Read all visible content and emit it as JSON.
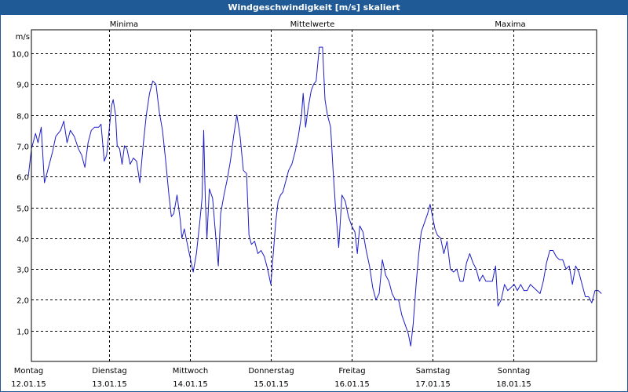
{
  "window": {
    "title": "Windgeschwindigkeit [m/s] skaliert"
  },
  "legend": {
    "min_label": "Minima",
    "min_color": "#1fa51f",
    "mean_label": "Mittelwerte",
    "mean_color": "#1c1cc8",
    "max_label": "Maxima",
    "max_color": "#c81c1c"
  },
  "chart_data": {
    "type": "line",
    "title": "Windgeschwindigkeit [m/s] skaliert",
    "ylabel": "m/s",
    "ylim": [
      0,
      11
    ],
    "yticks": [
      "1,0",
      "2,0",
      "3,0",
      "4,0",
      "5,0",
      "6,0",
      "7,0",
      "8,0",
      "9,0",
      "10,0"
    ],
    "days": [
      {
        "weekday": "Montag",
        "date": "12.01.15"
      },
      {
        "weekday": "Dienstag",
        "date": "13.01.15"
      },
      {
        "weekday": "Mittwoch",
        "date": "14.01.15"
      },
      {
        "weekday": "Donnerstag",
        "date": "15.01.15"
      },
      {
        "weekday": "Freitag",
        "date": "16.01.15"
      },
      {
        "weekday": "Samstag",
        "date": "17.01.15"
      },
      {
        "weekday": "Sonntag",
        "date": "18.01.15"
      }
    ],
    "grid": true,
    "series": [
      {
        "name": "Mittelwerte",
        "color": "#1c1cc8",
        "x_unit": "days since 12.01.15 00:00",
        "points": [
          [
            0.0,
            6.0
          ],
          [
            0.04,
            6.9
          ],
          [
            0.09,
            7.4
          ],
          [
            0.12,
            7.1
          ],
          [
            0.16,
            7.6
          ],
          [
            0.2,
            5.8
          ],
          [
            0.25,
            6.3
          ],
          [
            0.3,
            6.8
          ],
          [
            0.34,
            7.3
          ],
          [
            0.4,
            7.5
          ],
          [
            0.44,
            7.8
          ],
          [
            0.48,
            7.1
          ],
          [
            0.52,
            7.5
          ],
          [
            0.57,
            7.3
          ],
          [
            0.62,
            6.9
          ],
          [
            0.66,
            6.7
          ],
          [
            0.7,
            6.3
          ],
          [
            0.74,
            7.1
          ],
          [
            0.78,
            7.5
          ],
          [
            0.82,
            7.6
          ],
          [
            0.87,
            7.6
          ],
          [
            0.9,
            7.7
          ],
          [
            0.94,
            6.5
          ],
          [
            0.97,
            6.7
          ],
          [
            1.0,
            7.5
          ],
          [
            1.03,
            8.3
          ],
          [
            1.05,
            8.5
          ],
          [
            1.08,
            8.0
          ],
          [
            1.1,
            7.0
          ],
          [
            1.13,
            6.9
          ],
          [
            1.16,
            6.4
          ],
          [
            1.19,
            7.0
          ],
          [
            1.22,
            6.9
          ],
          [
            1.26,
            6.4
          ],
          [
            1.3,
            6.6
          ],
          [
            1.34,
            6.5
          ],
          [
            1.38,
            5.8
          ],
          [
            1.42,
            7.0
          ],
          [
            1.46,
            8.0
          ],
          [
            1.5,
            8.7
          ],
          [
            1.54,
            9.1
          ],
          [
            1.58,
            9.0
          ],
          [
            1.62,
            8.1
          ],
          [
            1.66,
            7.5
          ],
          [
            1.7,
            6.5
          ],
          [
            1.74,
            5.4
          ],
          [
            1.77,
            4.7
          ],
          [
            1.8,
            4.8
          ],
          [
            1.84,
            5.4
          ],
          [
            1.88,
            4.6
          ],
          [
            1.9,
            4.0
          ],
          [
            1.93,
            4.3
          ],
          [
            1.96,
            3.9
          ],
          [
            2.0,
            3.4
          ],
          [
            2.04,
            2.9
          ],
          [
            2.08,
            3.5
          ],
          [
            2.12,
            4.5
          ],
          [
            2.15,
            5.3
          ],
          [
            2.17,
            7.5
          ],
          [
            2.19,
            5.2
          ],
          [
            2.21,
            4.0
          ],
          [
            2.24,
            5.6
          ],
          [
            2.28,
            5.3
          ],
          [
            2.32,
            4.0
          ],
          [
            2.35,
            3.1
          ],
          [
            2.38,
            4.8
          ],
          [
            2.42,
            5.4
          ],
          [
            2.46,
            5.9
          ],
          [
            2.5,
            6.5
          ],
          [
            2.54,
            7.3
          ],
          [
            2.58,
            8.0
          ],
          [
            2.62,
            7.3
          ],
          [
            2.66,
            6.2
          ],
          [
            2.7,
            6.1
          ],
          [
            2.73,
            4.1
          ],
          [
            2.76,
            3.8
          ],
          [
            2.8,
            3.9
          ],
          [
            2.84,
            3.5
          ],
          [
            2.88,
            3.6
          ],
          [
            2.92,
            3.4
          ],
          [
            2.96,
            3.0
          ],
          [
            3.0,
            2.5
          ],
          [
            3.03,
            3.5
          ],
          [
            3.06,
            4.5
          ],
          [
            3.09,
            5.2
          ],
          [
            3.12,
            5.4
          ],
          [
            3.15,
            5.5
          ],
          [
            3.18,
            5.8
          ],
          [
            3.22,
            6.2
          ],
          [
            3.26,
            6.4
          ],
          [
            3.3,
            6.8
          ],
          [
            3.34,
            7.3
          ],
          [
            3.38,
            8.0
          ],
          [
            3.4,
            8.7
          ],
          [
            3.43,
            7.6
          ],
          [
            3.46,
            8.2
          ],
          [
            3.5,
            8.8
          ],
          [
            3.53,
            9.0
          ],
          [
            3.56,
            9.1
          ],
          [
            3.6,
            10.2
          ],
          [
            3.64,
            10.2
          ],
          [
            3.67,
            8.5
          ],
          [
            3.7,
            8.0
          ],
          [
            3.74,
            7.6
          ],
          [
            3.77,
            6.2
          ],
          [
            3.8,
            5.0
          ],
          [
            3.84,
            3.7
          ],
          [
            3.88,
            5.4
          ],
          [
            3.92,
            5.2
          ],
          [
            3.96,
            4.7
          ],
          [
            4.0,
            4.4
          ],
          [
            4.04,
            4.2
          ],
          [
            4.07,
            3.5
          ],
          [
            4.1,
            4.4
          ],
          [
            4.14,
            4.2
          ],
          [
            4.18,
            3.6
          ],
          [
            4.22,
            3.1
          ],
          [
            4.26,
            2.4
          ],
          [
            4.3,
            2.0
          ],
          [
            4.34,
            2.2
          ],
          [
            4.38,
            3.3
          ],
          [
            4.42,
            2.8
          ],
          [
            4.46,
            2.6
          ],
          [
            4.5,
            2.2
          ],
          [
            4.54,
            2.0
          ],
          [
            4.58,
            2.0
          ],
          [
            4.62,
            1.5
          ],
          [
            4.66,
            1.2
          ],
          [
            4.7,
            0.9
          ],
          [
            4.73,
            0.5
          ],
          [
            4.76,
            1.2
          ],
          [
            4.8,
            2.6
          ],
          [
            4.83,
            3.5
          ],
          [
            4.86,
            4.2
          ],
          [
            4.9,
            4.5
          ],
          [
            4.94,
            4.8
          ],
          [
            4.97,
            5.1
          ],
          [
            5.0,
            4.7
          ],
          [
            5.03,
            4.3
          ],
          [
            5.06,
            4.1
          ],
          [
            5.1,
            4.0
          ],
          [
            5.14,
            3.5
          ],
          [
            5.18,
            3.9
          ],
          [
            5.22,
            3.0
          ],
          [
            5.26,
            2.9
          ],
          [
            5.3,
            3.0
          ],
          [
            5.34,
            2.6
          ],
          [
            5.38,
            2.6
          ],
          [
            5.42,
            3.2
          ],
          [
            5.46,
            3.5
          ],
          [
            5.5,
            3.2
          ],
          [
            5.54,
            3.0
          ],
          [
            5.58,
            2.6
          ],
          [
            5.62,
            2.8
          ],
          [
            5.66,
            2.6
          ],
          [
            5.7,
            2.6
          ],
          [
            5.74,
            2.6
          ],
          [
            5.78,
            3.1
          ],
          [
            5.81,
            1.8
          ],
          [
            5.85,
            2.0
          ],
          [
            5.89,
            2.5
          ],
          [
            5.93,
            2.3
          ],
          [
            5.97,
            2.4
          ],
          [
            6.01,
            2.5
          ],
          [
            6.05,
            2.3
          ],
          [
            6.09,
            2.5
          ],
          [
            6.13,
            2.3
          ],
          [
            6.17,
            2.3
          ],
          [
            6.21,
            2.5
          ],
          [
            6.25,
            2.4
          ],
          [
            6.29,
            2.3
          ],
          [
            6.33,
            2.2
          ],
          [
            6.37,
            2.6
          ],
          [
            6.41,
            3.2
          ],
          [
            6.45,
            3.6
          ],
          [
            6.49,
            3.6
          ],
          [
            6.53,
            3.4
          ],
          [
            6.57,
            3.3
          ],
          [
            6.61,
            3.3
          ],
          [
            6.65,
            3.0
          ],
          [
            6.69,
            3.1
          ],
          [
            6.73,
            2.5
          ],
          [
            6.77,
            3.1
          ],
          [
            6.81,
            2.9
          ],
          [
            6.85,
            2.5
          ],
          [
            6.89,
            2.1
          ],
          [
            6.93,
            2.1
          ],
          [
            6.97,
            1.9
          ],
          [
            7.01,
            2.3
          ],
          [
            7.05,
            2.3
          ],
          [
            7.09,
            2.2
          ]
        ]
      }
    ]
  }
}
